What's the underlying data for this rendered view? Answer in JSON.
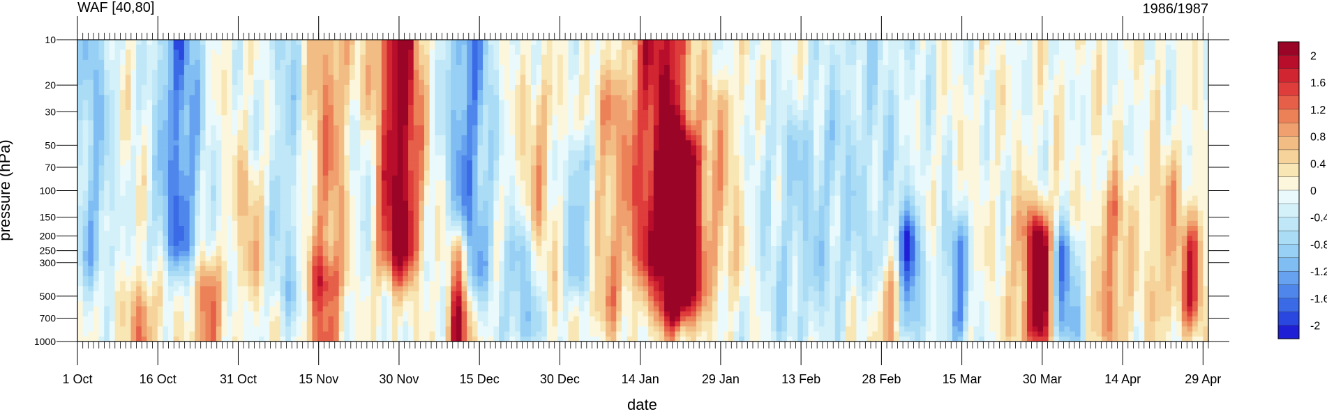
{
  "chart_data": {
    "type": "heatmap",
    "title_left": "WAF [40,80]",
    "title_right": "1986/1987",
    "xlabel": "date",
    "ylabel": "pressure (hPa)",
    "y_scale": "log",
    "y_reversed": true,
    "y_range": [
      1000,
      10
    ],
    "x_range": [
      "1986-10-01",
      "1987-04-30"
    ],
    "x_ticks": [
      "1 Oct",
      "16 Oct",
      "31 Oct",
      "15 Nov",
      "30 Nov",
      "15 Dec",
      "30 Dec",
      "14 Jan",
      "29 Jan",
      "13 Feb",
      "28 Feb",
      "15 Mar",
      "30 Mar",
      "14 Apr",
      "29 Apr"
    ],
    "y_ticks": [
      "10",
      "20",
      "30",
      "50",
      "70",
      "100",
      "150",
      "200",
      "250",
      "300",
      "500",
      "700",
      "1000"
    ],
    "y_tick_values": [
      10,
      20,
      30,
      50,
      70,
      100,
      150,
      200,
      250,
      300,
      500,
      700,
      1000
    ],
    "colorbar": {
      "levels": [
        -2.2,
        -2.0,
        -1.8,
        -1.6,
        -1.4,
        -1.2,
        -1.0,
        -0.8,
        -0.6,
        -0.4,
        -0.2,
        0,
        0.2,
        0.4,
        0.6,
        0.8,
        1.0,
        1.2,
        1.4,
        1.6,
        1.8,
        2.0,
        2.2
      ],
      "colors": [
        "#1f1fd6",
        "#2a48e0",
        "#3a6ae6",
        "#4e86ec",
        "#66a2f0",
        "#7fbdf2",
        "#97d0f4",
        "#abdcf5",
        "#bfe7f7",
        "#d4f1fa",
        "#eafafc",
        "#fbf6dc",
        "#f8e6b4",
        "#f5d39a",
        "#f2bd84",
        "#f0a06e",
        "#ec8158",
        "#e65f49",
        "#de3d3b",
        "#d12532",
        "#b80e2c",
        "#9a0426"
      ],
      "labels": [
        "2",
        "1.6",
        "1.2",
        "0.8",
        "0.4",
        "0",
        "-0.4",
        "-0.8",
        "-1.2",
        "-1.6",
        "-2"
      ],
      "label_values": [
        2.0,
        1.6,
        1.2,
        0.8,
        0.4,
        0,
        -0.4,
        -0.8,
        -1.2,
        -1.6,
        -2.0
      ]
    },
    "features": [
      {
        "date": "1986-10-04",
        "p_top": 10,
        "p_bot": 250,
        "value": -0.9,
        "width_days": 2.5
      },
      {
        "date": "1986-10-13",
        "p_top": 700,
        "p_bot": 1000,
        "value": 1.3,
        "width_days": 1.5
      },
      {
        "date": "1986-10-20",
        "p_top": 10,
        "p_bot": 200,
        "value": -1.5,
        "width_days": 3
      },
      {
        "date": "1986-10-25",
        "p_top": 500,
        "p_bot": 1000,
        "value": 1.4,
        "width_days": 1.5
      },
      {
        "date": "1986-11-02",
        "p_top": 100,
        "p_bot": 300,
        "value": 0.6,
        "width_days": 2
      },
      {
        "date": "1986-11-10",
        "p_top": 10,
        "p_bot": 400,
        "value": -0.9,
        "width_days": 3
      },
      {
        "date": "1986-11-16",
        "p_top": 10,
        "p_bot": 300,
        "value": 1.0,
        "width_days": 4
      },
      {
        "date": "1986-11-16",
        "p_top": 500,
        "p_bot": 1000,
        "value": 1.3,
        "width_days": 2
      },
      {
        "date": "1986-11-23",
        "p_top": 50,
        "p_bot": 300,
        "value": -0.6,
        "width_days": 2
      },
      {
        "date": "1986-11-29",
        "p_top": 10,
        "p_bot": 250,
        "value": 1.7,
        "width_days": 2.5
      },
      {
        "date": "1986-12-02",
        "p_top": 10,
        "p_bot": 200,
        "value": 1.0,
        "width_days": 2
      },
      {
        "date": "1986-12-11",
        "p_top": 300,
        "p_bot": 1000,
        "value": 1.9,
        "width_days": 1.5
      },
      {
        "date": "1986-12-13",
        "p_top": 10,
        "p_bot": 300,
        "value": -1.4,
        "width_days": 3
      },
      {
        "date": "1986-12-23",
        "p_top": 300,
        "p_bot": 700,
        "value": -1.0,
        "width_days": 2.5
      },
      {
        "date": "1986-12-26",
        "p_top": 30,
        "p_bot": 300,
        "value": 0.6,
        "width_days": 2
      },
      {
        "date": "1987-01-03",
        "p_top": 70,
        "p_bot": 300,
        "value": -1.1,
        "width_days": 2
      },
      {
        "date": "1987-01-08",
        "p_top": 30,
        "p_bot": 500,
        "value": 0.8,
        "width_days": 3
      },
      {
        "date": "1987-01-15",
        "p_top": 10,
        "p_bot": 250,
        "value": 1.3,
        "width_days": 2.5
      },
      {
        "date": "1987-01-20",
        "p_top": 10,
        "p_bot": 500,
        "value": 1.7,
        "width_days": 2.5
      },
      {
        "date": "1987-01-22",
        "p_top": 70,
        "p_bot": 400,
        "value": 2.2,
        "width_days": 2.5
      },
      {
        "date": "1987-01-29",
        "p_top": 30,
        "p_bot": 300,
        "value": 0.6,
        "width_days": 3
      },
      {
        "date": "1987-02-12",
        "p_top": 50,
        "p_bot": 700,
        "value": -0.5,
        "width_days": 6
      },
      {
        "date": "1987-02-25",
        "p_top": 10,
        "p_bot": 300,
        "value": -0.5,
        "width_days": 8
      },
      {
        "date": "1987-03-05",
        "p_top": 250,
        "p_bot": 700,
        "value": -1.6,
        "width_days": 1.5
      },
      {
        "date": "1987-03-02",
        "p_top": 500,
        "p_bot": 1000,
        "value": 1.0,
        "width_days": 2
      },
      {
        "date": "1987-03-14",
        "p_top": 250,
        "p_bot": 700,
        "value": -1.3,
        "width_days": 1.5
      },
      {
        "date": "1987-03-27",
        "p_top": 200,
        "p_bot": 700,
        "value": 1.0,
        "width_days": 2
      },
      {
        "date": "1987-03-30",
        "p_top": 250,
        "p_bot": 700,
        "value": 2.2,
        "width_days": 1.5
      },
      {
        "date": "1987-04-03",
        "p_top": 300,
        "p_bot": 700,
        "value": -1.4,
        "width_days": 2
      },
      {
        "date": "1987-04-12",
        "p_top": 150,
        "p_bot": 700,
        "value": 1.0,
        "width_days": 2
      },
      {
        "date": "1987-04-22",
        "p_top": 100,
        "p_bot": 500,
        "value": 0.6,
        "width_days": 3
      },
      {
        "date": "1987-04-27",
        "p_top": 250,
        "p_bot": 500,
        "value": 1.3,
        "width_days": 1.5
      }
    ]
  }
}
